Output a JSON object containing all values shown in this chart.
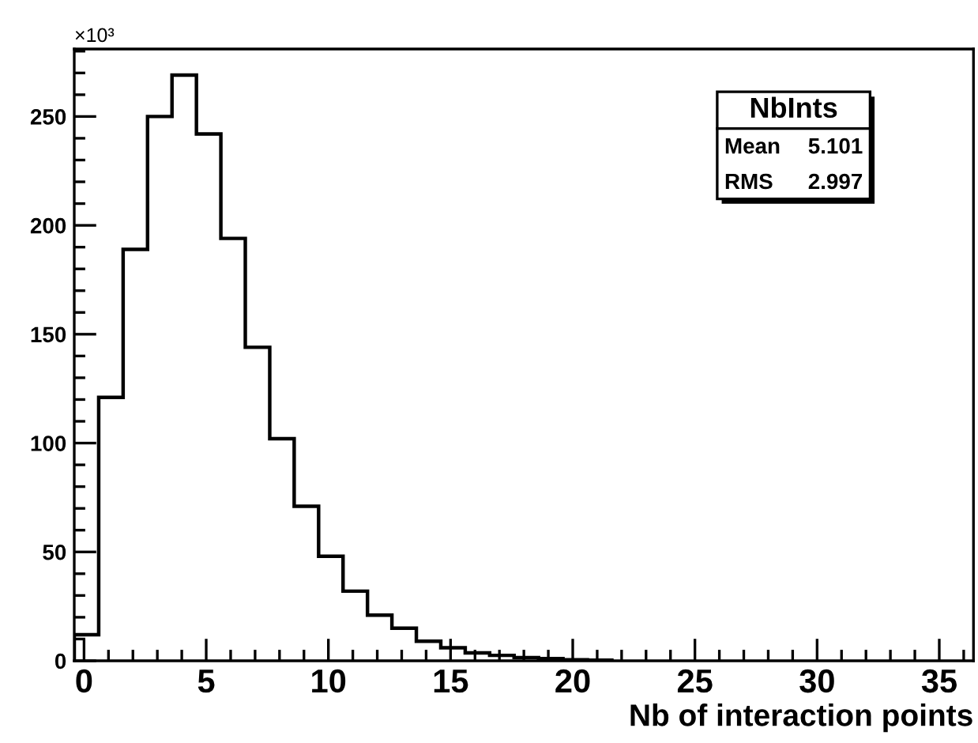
{
  "chart_data": {
    "type": "histogram",
    "xlabel": "Nb of interaction points",
    "color": "#000000",
    "bins": [
      -0.4,
      0.6,
      1.6,
      2.6,
      3.6,
      4.6,
      5.6,
      6.6,
      7.6,
      8.6,
      9.6,
      10.6,
      11.6,
      12.6,
      13.6,
      14.6,
      15.6,
      16.6,
      17.6,
      18.6,
      19.6,
      20.6,
      21.6
    ],
    "values": [
      12,
      121,
      189,
      250,
      269,
      242,
      194,
      144,
      102,
      71,
      48,
      32,
      21,
      15,
      9,
      6,
      3.6,
      2.5,
      1.5,
      1,
      0.5,
      0.3
    ],
    "xlim": [
      -0.4,
      36.4
    ],
    "xticks": [
      0,
      5,
      10,
      15,
      20,
      25,
      30,
      35
    ],
    "ylim": [
      0,
      281
    ],
    "yticks": [
      0,
      50,
      100,
      150,
      200,
      250
    ],
    "grid": false,
    "legend": false,
    "annotations": [
      "×10³",
      "NbInts",
      "Mean",
      "5.101",
      "RMS",
      "2.997"
    ]
  }
}
